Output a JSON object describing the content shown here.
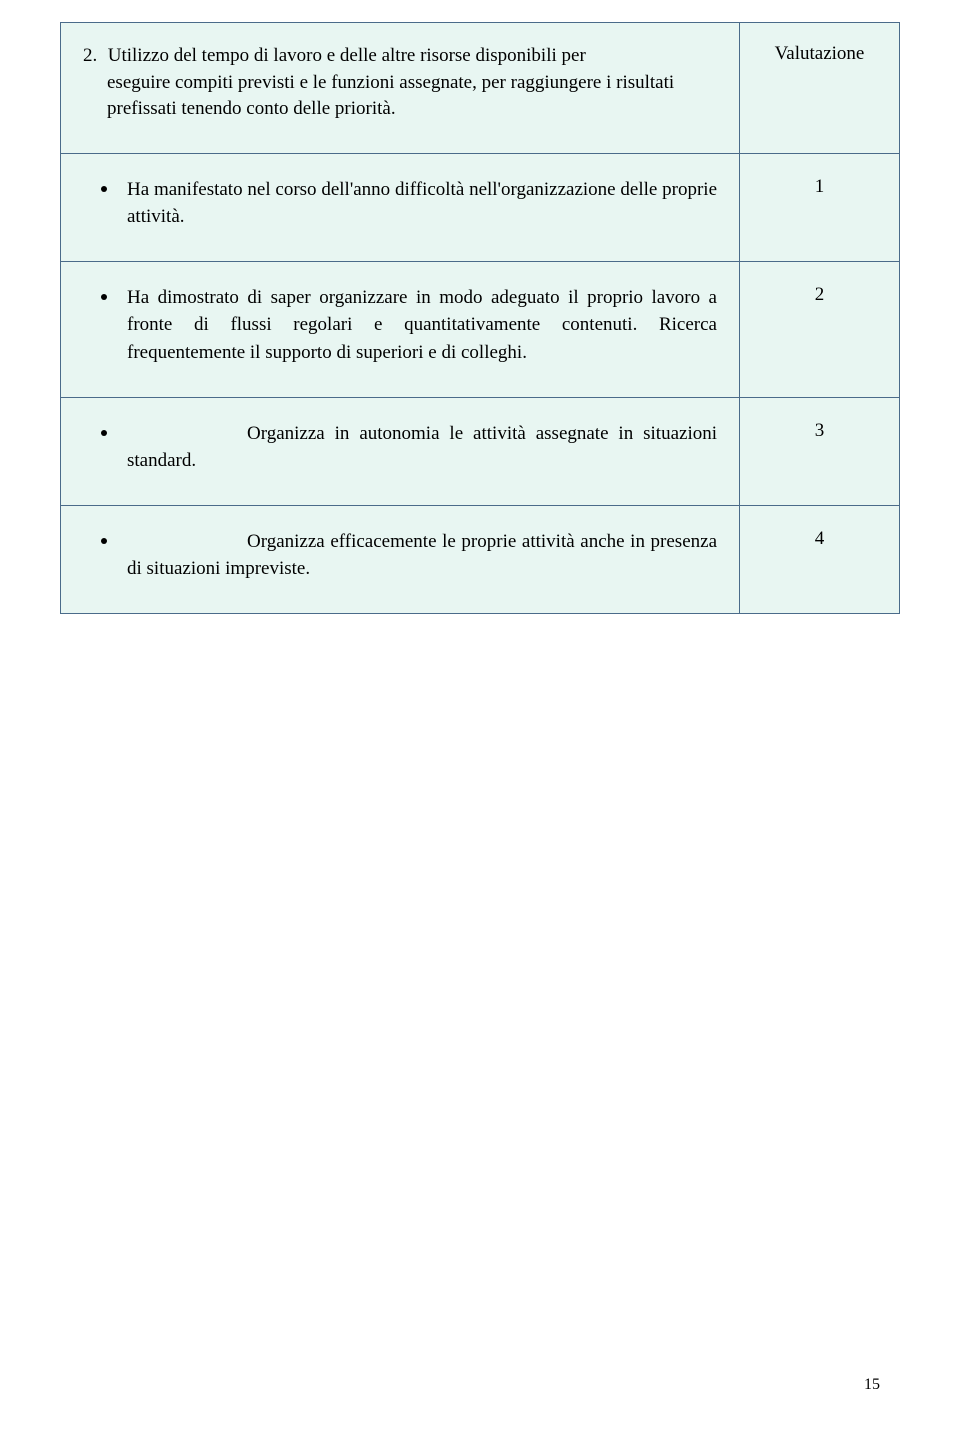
{
  "colors": {
    "table_background": "#e8f6f2",
    "border": "#4a6b8a",
    "page_background": "#ffffff",
    "text": "#000000"
  },
  "typography": {
    "body_fontsize_pt": 14,
    "font_family": "Century Schoolbook serif"
  },
  "header": {
    "number": "2.",
    "text": "Utilizzo del tempo di lavoro e delle altre risorse disponibili per eseguire compiti previsti e le funzioni assegnate, per raggiungere i risultati prefissati tenendo conto delle priorità.",
    "valutazione_label": "Valutazione"
  },
  "criteria": [
    {
      "text": "Ha manifestato nel corso dell'anno difficoltà nell'organizzazione delle proprie attività.",
      "score": "1",
      "indent": "none"
    },
    {
      "text": " Ha dimostrato di saper organizzare in modo adeguato il proprio lavoro a fronte di flussi regolari e quantitativamente contenuti. Ricerca frequentemente il supporto di superiori e di colleghi.",
      "score": "2",
      "indent": "none"
    },
    {
      "text": "Organizza in autonomia le attività assegnate in situazioni standard.",
      "score": "3",
      "indent": "large"
    },
    {
      "text": "Organizza efficacemente le proprie attività anche in presenza di situazioni impreviste.",
      "score": "4",
      "indent": "large"
    }
  ],
  "page_number": "15"
}
